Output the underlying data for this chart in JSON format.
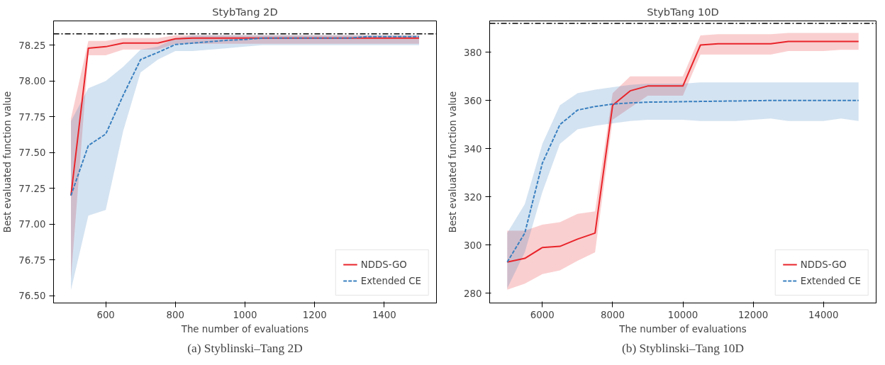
{
  "chart_data": [
    {
      "type": "line",
      "title": "StybTang 2D",
      "xlabel": "The number of evaluations",
      "ylabel": "Best evaluated function value",
      "annotations": [
        "(a) Styblinski–Tang 2D"
      ],
      "xlim": [
        450,
        1550
      ],
      "xticks": [
        600,
        800,
        1000,
        1200,
        1400
      ],
      "ylim": [
        76.45,
        78.42
      ],
      "yticks": [
        {
          "value": 76.5,
          "label": "76.50"
        },
        {
          "value": 76.75,
          "label": "76.75"
        },
        {
          "value": 77.0,
          "label": "77.00"
        },
        {
          "value": 77.25,
          "label": "77.25"
        },
        {
          "value": 77.5,
          "label": "77.50"
        },
        {
          "value": 77.75,
          "label": "77.75"
        },
        {
          "value": 78.0,
          "label": "78.00"
        },
        {
          "value": 78.25,
          "label": "78.25"
        }
      ],
      "grid": false,
      "legend": "bottom right",
      "ref_lines": [
        {
          "axis": "y",
          "value": 78.33,
          "color": "#000000",
          "line_style": "dashdot"
        }
      ],
      "x": [
        500,
        550,
        600,
        650,
        700,
        750,
        800,
        850,
        900,
        950,
        1000,
        1050,
        1100,
        1150,
        1200,
        1250,
        1300,
        1350,
        1400,
        1450,
        1500
      ],
      "series": [
        {
          "name": "NDDS-GO",
          "color": "#e8242a",
          "line_style": "solid",
          "values": [
            77.2,
            78.23,
            78.24,
            78.265,
            78.265,
            78.265,
            78.295,
            78.3,
            78.3,
            78.3,
            78.3,
            78.3,
            78.3,
            78.3,
            78.3,
            78.3,
            78.3,
            78.3,
            78.3,
            78.3,
            78.3
          ],
          "lower": [
            76.62,
            78.18,
            78.18,
            78.22,
            78.22,
            78.22,
            78.26,
            78.26,
            78.26,
            78.26,
            78.26,
            78.26,
            78.26,
            78.26,
            78.26,
            78.26,
            78.26,
            78.26,
            78.26,
            78.26,
            78.26
          ],
          "upper": [
            77.74,
            78.28,
            78.28,
            78.3,
            78.3,
            78.3,
            78.32,
            78.32,
            78.32,
            78.32,
            78.32,
            78.32,
            78.32,
            78.32,
            78.32,
            78.32,
            78.32,
            78.32,
            78.32,
            78.32,
            78.32
          ]
        },
        {
          "name": "Extended CE",
          "color": "#3a80c0",
          "line_style": "dashed",
          "values": [
            77.2,
            77.55,
            77.63,
            77.9,
            78.15,
            78.2,
            78.255,
            78.265,
            78.275,
            78.285,
            78.29,
            78.3,
            78.3,
            78.3,
            78.3,
            78.3,
            78.3,
            78.31,
            78.31,
            78.31,
            78.31
          ],
          "lower": [
            76.54,
            77.06,
            77.1,
            77.65,
            78.06,
            78.15,
            78.21,
            78.21,
            78.22,
            78.23,
            78.24,
            78.25,
            78.25,
            78.25,
            78.25,
            78.25,
            78.25,
            78.25,
            78.25,
            78.25,
            78.25
          ],
          "upper": [
            77.72,
            77.95,
            78.0,
            78.1,
            78.22,
            78.24,
            78.3,
            78.32,
            78.32,
            78.32,
            78.32,
            78.32,
            78.32,
            78.32,
            78.32,
            78.32,
            78.32,
            78.32,
            78.32,
            78.32,
            78.32
          ]
        }
      ]
    },
    {
      "type": "line",
      "title": "StybTang 10D",
      "xlabel": "The number of evaluations",
      "ylabel": "Best evaluated function value",
      "annotations": [
        "(b) Styblinski–Tang 10D"
      ],
      "xlim": [
        4500,
        15500
      ],
      "xticks": [
        6000,
        8000,
        10000,
        12000,
        14000
      ],
      "ylim": [
        276,
        393
      ],
      "yticks": [
        280,
        300,
        320,
        340,
        360,
        380
      ],
      "grid": false,
      "legend": "bottom right",
      "ref_lines": [
        {
          "axis": "y",
          "value": 392,
          "color": "#000000",
          "line_style": "dashdot"
        }
      ],
      "x": [
        5000,
        5500,
        6000,
        6500,
        7000,
        7500,
        8000,
        8500,
        9000,
        9500,
        10000,
        10500,
        11000,
        11500,
        12000,
        12500,
        13000,
        13500,
        14000,
        14500,
        15000
      ],
      "series": [
        {
          "name": "NDDS-GO",
          "color": "#e8242a",
          "line_style": "solid",
          "values": [
            293,
            294.5,
            299,
            299.5,
            302.5,
            305,
            358,
            364,
            366,
            366,
            366,
            383,
            383.5,
            383.5,
            383.5,
            383.5,
            384.5,
            384.5,
            384.5,
            384.5,
            384.5
          ],
          "lower": [
            281.5,
            284,
            288,
            289.5,
            293.5,
            297,
            352,
            357,
            362,
            362,
            362,
            379,
            379,
            379,
            379,
            379,
            380.5,
            380.5,
            380.5,
            381,
            381
          ],
          "upper": [
            306,
            306,
            308.5,
            309.5,
            313,
            314,
            363,
            370,
            370,
            370,
            370,
            387,
            387.5,
            387.5,
            387.5,
            387.5,
            388,
            388,
            388,
            388,
            388
          ]
        },
        {
          "name": "Extended CE",
          "color": "#3a80c0",
          "line_style": "dashed",
          "values": [
            293,
            305,
            334,
            350,
            356,
            357.5,
            358.5,
            359,
            359.3,
            359.4,
            359.5,
            359.6,
            359.7,
            359.8,
            359.9,
            360,
            360,
            360,
            360,
            360,
            360
          ],
          "lower": [
            282,
            297,
            322,
            342,
            348,
            349.5,
            350.5,
            351.5,
            352,
            352,
            352,
            351.5,
            351.5,
            351.5,
            352,
            352.5,
            351.5,
            351.5,
            351.5,
            352.5,
            351.5
          ],
          "upper": [
            305,
            317,
            342,
            358,
            363,
            364.5,
            365.5,
            366.5,
            367,
            367,
            367,
            367.5,
            367.5,
            367.5,
            367.5,
            367.5,
            367.5,
            367.5,
            367.5,
            367.5,
            367.5
          ]
        }
      ]
    }
  ]
}
